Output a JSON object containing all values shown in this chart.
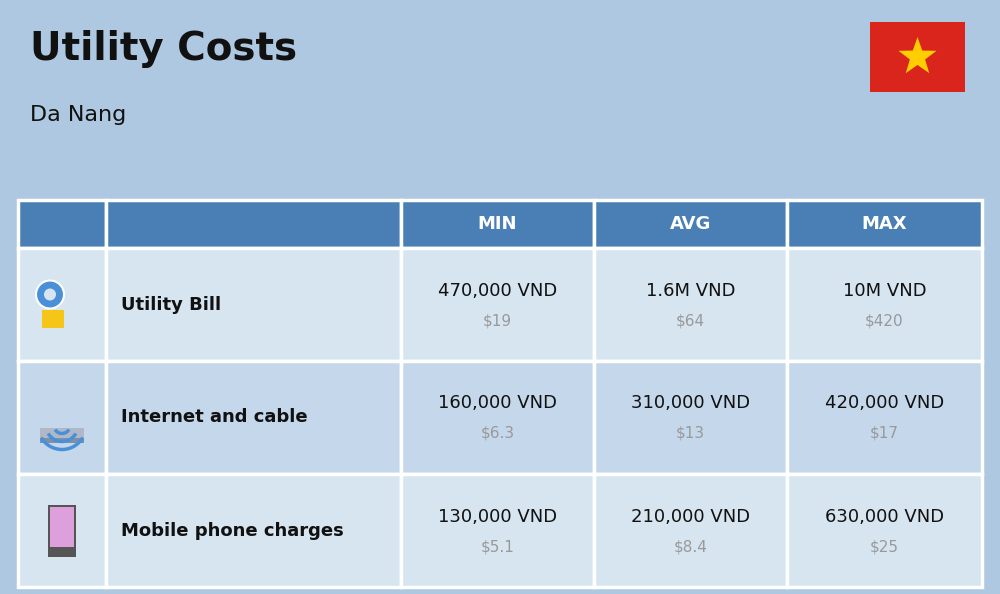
{
  "title": "Utility Costs",
  "subtitle": "Da Nang",
  "background_color": "#adc8e0",
  "header_bg_color": "#4a7fb5",
  "header_text_color": "#ffffff",
  "row_bg_color_1": "#d6e5f0",
  "row_bg_color_2": "#c5d8eb",
  "table_border_color": "#ffffff",
  "text_color_dark": "#111111",
  "text_color_gray": "#999999",
  "flag_bg": "#da251d",
  "flag_star": "#ffcd00",
  "headers": [
    "MIN",
    "AVG",
    "MAX"
  ],
  "rows": [
    {
      "icon": "utility",
      "label": "Utility Bill",
      "min_vnd": "470,000 VND",
      "min_usd": "$19",
      "avg_vnd": "1.6M VND",
      "avg_usd": "$64",
      "max_vnd": "10M VND",
      "max_usd": "$420"
    },
    {
      "icon": "internet",
      "label": "Internet and cable",
      "min_vnd": "160,000 VND",
      "min_usd": "$6.3",
      "avg_vnd": "310,000 VND",
      "avg_usd": "$13",
      "max_vnd": "420,000 VND",
      "max_usd": "$17"
    },
    {
      "icon": "mobile",
      "label": "Mobile phone charges",
      "min_vnd": "130,000 VND",
      "min_usd": "$5.1",
      "avg_vnd": "210,000 VND",
      "avg_usd": "$8.4",
      "max_vnd": "630,000 VND",
      "max_usd": "$25"
    }
  ],
  "figwidth": 10.0,
  "figheight": 5.94,
  "dpi": 100,
  "title_fontsize": 28,
  "subtitle_fontsize": 16,
  "header_fontsize": 13,
  "label_fontsize": 13,
  "vnd_fontsize": 13,
  "usd_fontsize": 11
}
